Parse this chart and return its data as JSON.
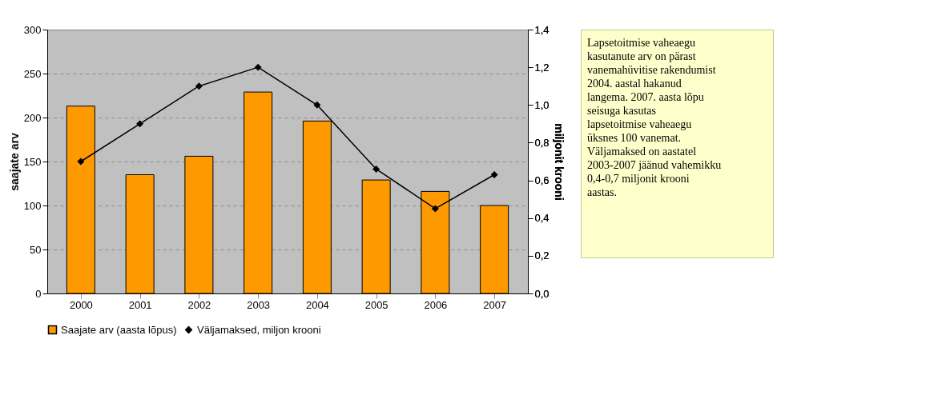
{
  "chart_data": {
    "type": "bar",
    "categories": [
      "2000",
      "2001",
      "2002",
      "2003",
      "2004",
      "2005",
      "2006",
      "2007"
    ],
    "ylabel": "saajate arv",
    "y2label": "miljonit krooni",
    "ylim": [
      0,
      300
    ],
    "yticks": [
      0,
      50,
      100,
      150,
      200,
      250,
      300
    ],
    "y2lim": [
      0,
      1.4
    ],
    "y2ticks": [
      {
        "value": 0,
        "label": "0,0"
      },
      {
        "value": 0.2,
        "label": "0,2"
      },
      {
        "value": 0.4,
        "label": "0,4"
      },
      {
        "value": 0.6,
        "label": "0,6"
      },
      {
        "value": 0.8,
        "label": "0,8"
      },
      {
        "value": 1.0,
        "label": "1,0"
      },
      {
        "value": 1.2,
        "label": "1,2"
      },
      {
        "value": 1.4,
        "label": "1,4"
      }
    ],
    "series": [
      {
        "name": "Saajate arv (aasta lõpus)",
        "color": "#ff9900",
        "values": [
          213,
          135,
          156,
          229,
          196,
          129,
          116,
          100
        ]
      },
      {
        "name": "Väljamaksed, miljon krooni",
        "type": "line",
        "axis": "y2",
        "color": "#000000",
        "marker": "diamond",
        "values": [
          0.7,
          0.9,
          1.1,
          1.2,
          1.0,
          0.66,
          0.45,
          0.63
        ]
      }
    ],
    "grid": "y",
    "legend": "bottom",
    "annotations": [
      "Lapsetoitmise vaheaegu kasutanute arv on pärast vanemahüvitise rakendumist 2004. aastal hakanud langema. 2007. aasta lõpu seisuga kasutas lapsetoitmise vaheaegu üksnes 100 vanemat. Väljamaksed on aastatel 2003-2007 jäänud vahemikku 0,4-0,7 miljonit krooni aastas."
    ]
  }
}
